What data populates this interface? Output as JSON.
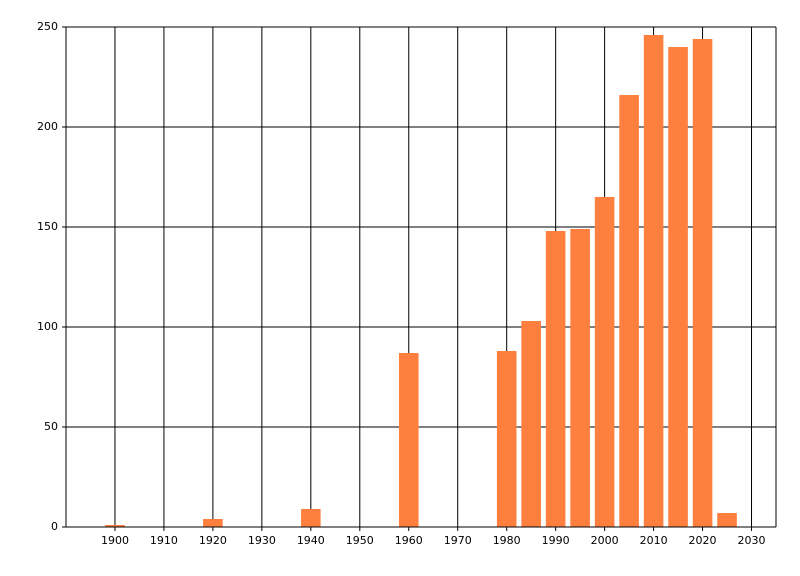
{
  "chart_data": {
    "type": "bar",
    "x": [
      1900,
      1920,
      1940,
      1960,
      1980,
      1985,
      1990,
      1995,
      2000,
      2005,
      2010,
      2015,
      2020,
      2025
    ],
    "values": [
      1,
      4,
      9,
      87,
      88,
      103,
      148,
      149,
      165,
      216,
      246,
      240,
      244,
      7
    ],
    "color": "#ff7f3f",
    "xlim": [
      1890,
      2035
    ],
    "xticks": [
      1900,
      1910,
      1920,
      1930,
      1940,
      1950,
      1960,
      1970,
      1980,
      1990,
      2000,
      2010,
      2020,
      2030
    ],
    "ylim": [
      0,
      250
    ],
    "yticks": [
      0,
      50,
      100,
      150,
      200,
      250
    ],
    "grid": true
  }
}
